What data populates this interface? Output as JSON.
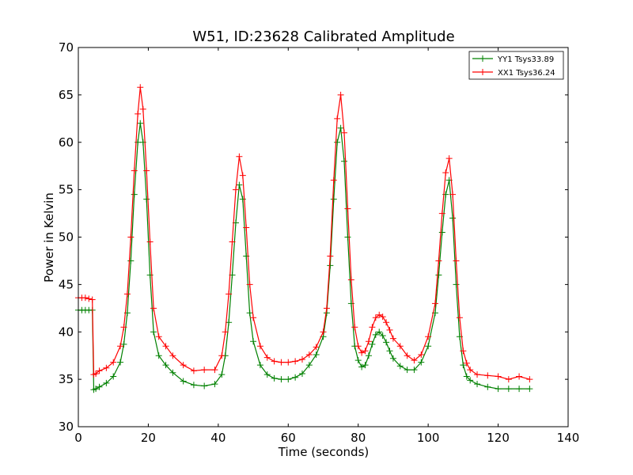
{
  "chart_data": {
    "type": "line",
    "title": "W51, ID:23628 Calibrated Amplitude",
    "xlabel": "Time (seconds)",
    "ylabel": "Power in Kelvin",
    "xlim": [
      0,
      140
    ],
    "ylim": [
      30,
      70
    ],
    "xticks": [
      0,
      20,
      40,
      60,
      80,
      100,
      120,
      140
    ],
    "yticks": [
      30,
      35,
      40,
      45,
      50,
      55,
      60,
      65,
      70
    ],
    "grid": false,
    "legend_position": "top-right",
    "marker": "+",
    "series": [
      {
        "name": "YY1 Tsys33.89",
        "color": "#008000",
        "x": [
          0,
          1,
          2,
          3,
          4,
          4.4,
          5,
          6,
          8,
          10,
          12,
          13,
          14,
          15,
          16,
          17,
          17.7,
          18.5,
          19.5,
          20.5,
          21.5,
          23,
          25,
          27,
          30,
          33,
          36,
          39,
          41,
          42,
          43,
          44,
          45,
          46,
          47,
          48,
          49,
          50,
          52,
          54,
          56,
          58,
          60,
          62,
          64,
          66,
          68,
          70,
          71,
          72,
          73,
          74,
          75,
          76,
          77,
          78,
          79,
          80,
          81,
          82,
          83,
          84,
          85,
          86,
          87,
          88,
          89,
          90,
          92,
          94,
          96,
          98,
          100,
          102,
          103,
          104,
          105,
          106,
          107,
          108,
          109,
          110,
          111,
          112,
          114,
          117,
          120,
          123,
          126,
          129
        ],
        "y": [
          42.3,
          42.3,
          42.3,
          42.3,
          42.3,
          33.9,
          34.0,
          34.2,
          34.6,
          35.3,
          36.8,
          38.7,
          42.0,
          47.5,
          54.5,
          60.0,
          62.0,
          60.0,
          54.0,
          46.0,
          40.0,
          37.5,
          36.5,
          35.7,
          34.8,
          34.4,
          34.3,
          34.5,
          35.5,
          37.5,
          41.0,
          46.0,
          51.5,
          55.5,
          54.0,
          48.0,
          42.0,
          39.0,
          36.5,
          35.5,
          35.1,
          35.0,
          35.0,
          35.2,
          35.6,
          36.5,
          37.6,
          39.5,
          42.0,
          47.0,
          54.0,
          60.0,
          61.5,
          58.0,
          50.0,
          43.0,
          38.5,
          37.0,
          36.3,
          36.5,
          37.5,
          38.7,
          39.7,
          40.0,
          39.6,
          38.9,
          38.0,
          37.2,
          36.4,
          36.0,
          36.0,
          36.8,
          38.5,
          42.0,
          46.0,
          50.5,
          54.5,
          56.0,
          52.0,
          45.0,
          39.5,
          36.5,
          35.3,
          34.9,
          34.5,
          34.2,
          34.0,
          34.0,
          34.0,
          34.0
        ]
      },
      {
        "name": "XX1 Tsys36.24",
        "color": "#ff0000",
        "x": [
          0,
          1,
          2,
          3,
          4,
          4.4,
          5,
          6,
          8,
          10,
          12,
          13,
          14,
          15,
          16,
          17,
          17.7,
          18.5,
          19.5,
          20.5,
          21.5,
          23,
          25,
          27,
          30,
          33,
          36,
          39,
          41,
          42,
          43,
          44,
          45,
          46,
          47,
          48,
          49,
          50,
          52,
          54,
          56,
          58,
          60,
          62,
          64,
          66,
          68,
          70,
          71,
          72,
          73,
          74,
          75,
          76,
          77,
          78,
          79,
          80,
          81,
          82,
          83,
          84,
          85,
          86,
          87,
          88,
          89,
          90,
          92,
          94,
          96,
          98,
          100,
          102,
          103,
          104,
          105,
          106,
          107,
          108,
          109,
          110,
          111,
          112,
          114,
          117,
          120,
          123,
          126,
          129
        ],
        "y": [
          43.6,
          43.6,
          43.6,
          43.5,
          43.4,
          35.5,
          35.6,
          35.9,
          36.2,
          36.8,
          38.5,
          40.5,
          44.0,
          50.0,
          57.0,
          63.0,
          65.8,
          63.5,
          57.0,
          49.5,
          42.5,
          39.5,
          38.5,
          37.5,
          36.5,
          35.9,
          36.0,
          36.0,
          37.5,
          40.0,
          44.0,
          49.5,
          55.0,
          58.5,
          56.5,
          51.0,
          45.0,
          41.5,
          38.5,
          37.3,
          36.9,
          36.8,
          36.8,
          36.9,
          37.1,
          37.6,
          38.4,
          40.0,
          42.5,
          48.0,
          56.0,
          62.5,
          65.0,
          61.0,
          53.0,
          45.5,
          40.5,
          38.5,
          37.8,
          38.0,
          39.0,
          40.5,
          41.5,
          41.8,
          41.6,
          41.0,
          40.2,
          39.3,
          38.5,
          37.5,
          37.0,
          37.6,
          39.5,
          43.0,
          47.5,
          52.5,
          56.8,
          58.3,
          54.5,
          47.5,
          41.5,
          38.0,
          36.7,
          36.0,
          35.5,
          35.4,
          35.3,
          35.0,
          35.3,
          35.0
        ]
      }
    ]
  }
}
